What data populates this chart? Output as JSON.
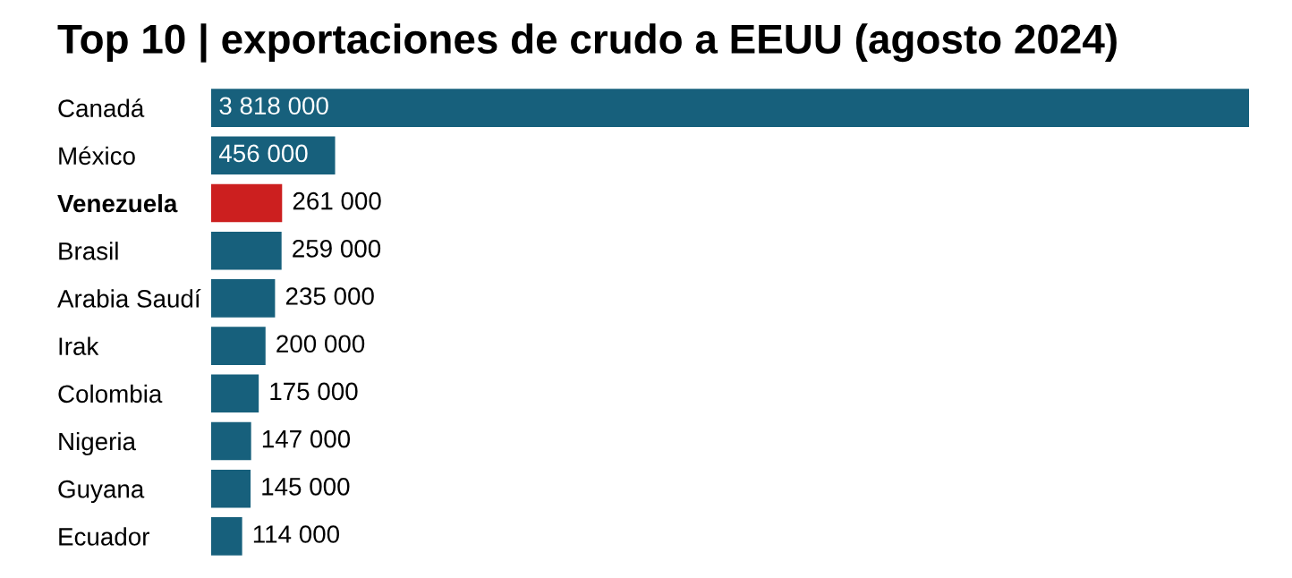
{
  "chart_data": {
    "type": "bar",
    "orientation": "horizontal",
    "title": "Top 10 | exportaciones de crudo a EEUU (agosto 2024)",
    "categories": [
      "Canadá",
      "México",
      "Venezuela",
      "Brasil",
      "Arabia Saudí",
      "Irak",
      "Colombia",
      "Nigeria",
      "Guyana",
      "Ecuador"
    ],
    "values": [
      3818000,
      456000,
      261000,
      259000,
      235000,
      200000,
      175000,
      147000,
      145000,
      114000
    ],
    "colors": [
      "#17607c",
      "#17607c",
      "#cc1f1f",
      "#17607c",
      "#17607c",
      "#17607c",
      "#17607c",
      "#17607c",
      "#17607c",
      "#17607c"
    ],
    "value_labels": [
      "3 818 000",
      "456 000",
      "261 000",
      "259 000",
      "235 000",
      "200 000",
      "175 000",
      "147 000",
      "145 000",
      "114 000"
    ],
    "grid": false,
    "legend": false
  }
}
